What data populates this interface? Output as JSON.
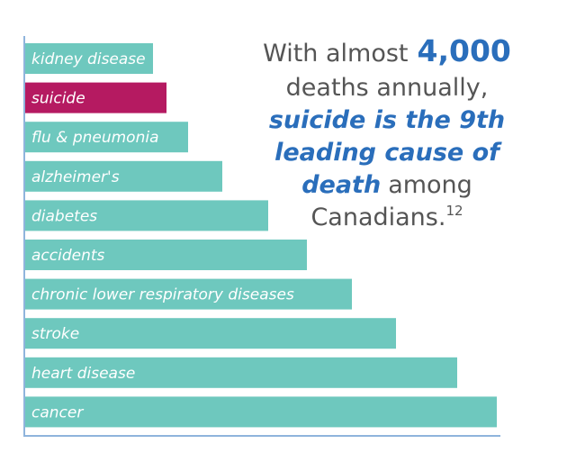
{
  "chart_data": {
    "type": "bar",
    "orientation": "horizontal",
    "categories": [
      "kidney disease",
      "suicide",
      "flu & pneumonia",
      "alzheimer's",
      "diabetes",
      "accidents",
      "chronic lower respiratory diseases",
      "stroke",
      "heart disease",
      "cancer"
    ],
    "values": [
      142,
      157,
      181,
      219,
      270,
      313,
      363,
      412,
      480,
      524
    ],
    "colors": [
      "#6ec8be",
      "#b51a61",
      "#6ec8be",
      "#6ec8be",
      "#6ec8be",
      "#6ec8be",
      "#6ec8be",
      "#6ec8be",
      "#6ec8be",
      "#6ec8be"
    ],
    "annotation": {
      "lines": [
        [
          "With almost",
          "4,000"
        ],
        [
          "deaths annually,"
        ],
        [
          "suicide is the 9th"
        ],
        [
          "leading cause of"
        ],
        [
          "death",
          "among"
        ],
        [
          "Canadians.",
          "12"
        ]
      ]
    }
  }
}
